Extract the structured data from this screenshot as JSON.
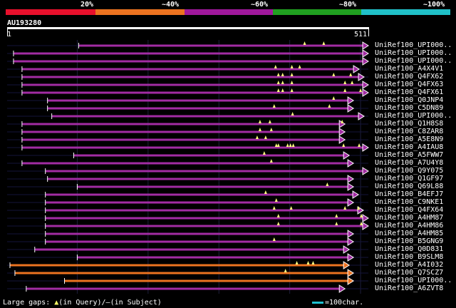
{
  "scale": {
    "labels": [
      "20%",
      "~40%",
      "~60%",
      "~80%",
      "~100%"
    ],
    "colors": [
      "#e8102c",
      "#ec7320",
      "#a0189c",
      "#20a020",
      "#20c0c8"
    ]
  },
  "query": {
    "id": "AU193280",
    "start": "1",
    "end": "511",
    "length": 511
  },
  "hits": [
    {
      "label": "UniRef100_UPI000..",
      "color": "#a22ca3",
      "start": 102,
      "end": 511,
      "tri": [
        421,
        448
      ]
    },
    {
      "label": "UniRef100_UPI000..",
      "color": "#a22ca3",
      "start": 10,
      "end": 511,
      "tri": []
    },
    {
      "label": "UniRef100_UPI000..",
      "color": "#a22ca3",
      "start": 10,
      "end": 511,
      "tri": []
    },
    {
      "label": "UniRef100_A4X4V1",
      "color": "#a22ca3",
      "start": 22,
      "end": 498,
      "tri": [
        380,
        403,
        414
      ]
    },
    {
      "label": "UniRef100_Q4FX62",
      "color": "#a22ca3",
      "start": 22,
      "end": 505,
      "tri": [
        384,
        390,
        403,
        462,
        486
      ]
    },
    {
      "label": "UniRef100_Q4FX63",
      "color": "#a22ca3",
      "start": 22,
      "end": 511,
      "tri": [
        384,
        390,
        403,
        478,
        488
      ]
    },
    {
      "label": "UniRef100_Q4FX61",
      "color": "#a22ca3",
      "start": 22,
      "end": 511,
      "tri": [
        384,
        390,
        403,
        478,
        500
      ]
    },
    {
      "label": "UniRef100_Q0JNP4",
      "color": "#a22ca3",
      "start": 58,
      "end": 490,
      "tri": [
        462
      ]
    },
    {
      "label": "UniRef100_C5DN89",
      "color": "#a22ca3",
      "start": 58,
      "end": 490,
      "tri": [
        378,
        456
      ]
    },
    {
      "label": "UniRef100_UPI000..",
      "color": "#a22ca3",
      "start": 64,
      "end": 505,
      "tri": [
        404
      ]
    },
    {
      "label": "UniRef100_Q1H8S8",
      "color": "#a22ca3",
      "start": 22,
      "end": 478,
      "tri": [
        358,
        372,
        474
      ]
    },
    {
      "label": "UniRef100_C8ZAR8",
      "color": "#a22ca3",
      "start": 22,
      "end": 478,
      "tri": [
        358,
        374
      ]
    },
    {
      "label": "UniRef100_A5E8N9",
      "color": "#a22ca3",
      "start": 22,
      "end": 478,
      "tri": [
        354,
        366
      ]
    },
    {
      "label": "UniRef100_A4IAU8",
      "color": "#a22ca3",
      "start": 22,
      "end": 511,
      "tri": [
        381,
        384,
        397,
        401,
        405,
        476,
        498
      ]
    },
    {
      "label": "UniRef100_A5FWW7",
      "color": "#a22ca3",
      "start": 95,
      "end": 484,
      "tri": [
        364
      ]
    },
    {
      "label": "UniRef100_A7U4Y8",
      "color": "#a22ca3",
      "start": 22,
      "end": 490,
      "tri": [
        374
      ]
    },
    {
      "label": "UniRef100_Q9Y075",
      "color": "#a22ca3",
      "start": 55,
      "end": 511,
      "tri": []
    },
    {
      "label": "UniRef100_Q1GF97",
      "color": "#a22ca3",
      "start": 58,
      "end": 490,
      "tri": []
    },
    {
      "label": "UniRef100_Q69L88",
      "color": "#a22ca3",
      "start": 100,
      "end": 490,
      "tri": [
        453
      ]
    },
    {
      "label": "UniRef100_B4EFJ7",
      "color": "#a22ca3",
      "start": 55,
      "end": 497,
      "tri": [
        366
      ]
    },
    {
      "label": "UniRef100_C9NKE1",
      "color": "#a22ca3",
      "start": 55,
      "end": 490,
      "tri": [
        381
      ]
    },
    {
      "label": "UniRef100_Q4FX64",
      "color": "#a22ca3",
      "start": 55,
      "end": 504,
      "tri": [
        378,
        402,
        478,
        497
      ]
    },
    {
      "label": "UniRef100_A4HM87",
      "color": "#a22ca3",
      "start": 55,
      "end": 511,
      "tri": [
        384,
        466,
        501
      ]
    },
    {
      "label": "UniRef100_A4HM86",
      "color": "#a22ca3",
      "start": 55,
      "end": 511,
      "tri": [
        384,
        466,
        501
      ]
    },
    {
      "label": "UniRef100_A4HM85",
      "color": "#a22ca3",
      "start": 55,
      "end": 490,
      "tri": []
    },
    {
      "label": "UniRef100_B5GNG9",
      "color": "#a22ca3",
      "start": 55,
      "end": 490,
      "tri": [
        378
      ]
    },
    {
      "label": "UniRef100_Q0D831",
      "color": "#a22ca3",
      "start": 40,
      "end": 484,
      "tri": []
    },
    {
      "label": "UniRef100_B9SLM8",
      "color": "#a22ca3",
      "start": 100,
      "end": 490,
      "tri": []
    },
    {
      "label": "UniRef100_A4I032",
      "color": "#ec7320",
      "start": 5,
      "end": 484,
      "tri": [
        410,
        426,
        433
      ]
    },
    {
      "label": "UniRef100_Q7SCZ7",
      "color": "#ec7320",
      "start": 12,
      "end": 490,
      "tri": [
        394
      ]
    },
    {
      "label": "UniRef100_UPI000..",
      "color": "#ec7320",
      "start": 82,
      "end": 490,
      "tri": []
    },
    {
      "label": "UniRef100_A6ZVT8",
      "color": "#a22ca3",
      "start": 28,
      "end": 478,
      "tri": []
    }
  ],
  "legend": {
    "gaps_label": "Large gaps:",
    "triangle": "▲",
    "query_text": "(in Query)/",
    "dash": "—",
    "subject_text": "(in Subject)",
    "scale_text": "=100char."
  }
}
